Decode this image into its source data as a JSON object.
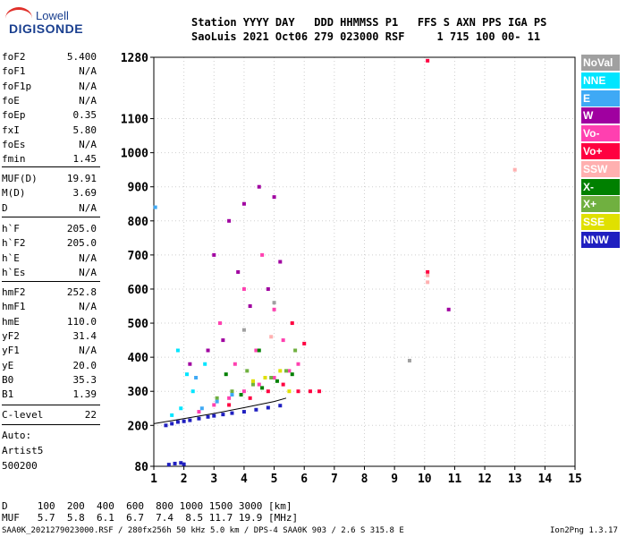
{
  "logo": {
    "line1": "Lowell",
    "line2": "DIGISONDE"
  },
  "header": {
    "row1": "Station YYYY DAY   DDD HHMMSS P1   FFS S AXN PPS IGA PS",
    "row2": "SaoLuis 2021 Oct06 279 023000 RSF     1 715 100 00- 11"
  },
  "scaled": {
    "group1": [
      {
        "label": "foF2",
        "value": "5.400"
      },
      {
        "label": "foF1",
        "value": "N/A"
      },
      {
        "label": "foF1p",
        "value": "N/A"
      },
      {
        "label": "foE",
        "value": "N/A"
      },
      {
        "label": "foEp",
        "value": "0.35"
      },
      {
        "label": "fxI",
        "value": "5.80"
      },
      {
        "label": "foEs",
        "value": "N/A"
      },
      {
        "label": "fmin",
        "value": "1.45"
      }
    ],
    "group2": [
      {
        "label": "MUF(D)",
        "value": "19.91"
      },
      {
        "label": "M(D)",
        "value": "3.69"
      },
      {
        "label": "D",
        "value": "N/A"
      }
    ],
    "group3": [
      {
        "label": "h`F",
        "value": "205.0"
      },
      {
        "label": "h`F2",
        "value": "205.0"
      },
      {
        "label": "h`E",
        "value": "N/A"
      },
      {
        "label": "h`Es",
        "value": "N/A"
      }
    ],
    "group4": [
      {
        "label": "hmF2",
        "value": "252.8"
      },
      {
        "label": "hmF1",
        "value": "N/A"
      },
      {
        "label": "hmE",
        "value": "110.0"
      },
      {
        "label": "yF2",
        "value": "31.4"
      },
      {
        "label": "yF1",
        "value": "N/A"
      },
      {
        "label": "yE",
        "value": "20.0"
      },
      {
        "label": "B0",
        "value": "35.3"
      },
      {
        "label": "B1",
        "value": "1.39"
      }
    ],
    "clevel": {
      "label": "C-level",
      "value": "22"
    },
    "auto": [
      "Auto:",
      "Artist5",
      "500200"
    ]
  },
  "legend": [
    {
      "label": "NoVal",
      "color": "#a0a0a0"
    },
    {
      "label": "NNE",
      "color": "#00e5ff"
    },
    {
      "label": "E",
      "color": "#3fa9f5"
    },
    {
      "label": "W",
      "color": "#a000a0"
    },
    {
      "label": "Vo-",
      "color": "#ff40b0"
    },
    {
      "label": "Vo+",
      "color": "#ff0040"
    },
    {
      "label": "SSW",
      "color": "#ffb0b0"
    },
    {
      "label": "X-",
      "color": "#008000"
    },
    {
      "label": "X+",
      "color": "#70b040"
    },
    {
      "label": "SSE",
      "color": "#e0e000"
    },
    {
      "label": "NNW",
      "color": "#2020c0"
    }
  ],
  "chart_data": {
    "type": "scatter",
    "title": "",
    "xlabel": "",
    "ylabel": "",
    "xlim": [
      1,
      15
    ],
    "ylim": [
      80,
      1280
    ],
    "x_ticks": [
      1,
      2,
      3,
      4,
      5,
      6,
      7,
      8,
      9,
      10,
      11,
      12,
      13,
      14,
      15
    ],
    "y_ticks": [
      80,
      200,
      300,
      400,
      500,
      600,
      700,
      800,
      900,
      1000,
      1100,
      1280
    ],
    "grid": true,
    "series": [
      {
        "name": "NNW",
        "color": "#2020c0",
        "points": [
          [
            1.4,
            200
          ],
          [
            1.6,
            205
          ],
          [
            1.8,
            210
          ],
          [
            2.0,
            212
          ],
          [
            2.2,
            215
          ],
          [
            2.5,
            220
          ],
          [
            2.8,
            225
          ],
          [
            3.0,
            228
          ],
          [
            3.3,
            232
          ],
          [
            3.6,
            236
          ],
          [
            4.0,
            240
          ],
          [
            4.4,
            246
          ],
          [
            4.8,
            252
          ],
          [
            5.2,
            258
          ],
          [
            1.5,
            85
          ],
          [
            1.7,
            88
          ],
          [
            1.9,
            90
          ],
          [
            2.0,
            86
          ]
        ]
      },
      {
        "name": "Vo-",
        "color": "#ff40b0",
        "points": [
          [
            2.5,
            240
          ],
          [
            3.0,
            260
          ],
          [
            3.5,
            280
          ],
          [
            4.0,
            300
          ],
          [
            4.5,
            320
          ],
          [
            5.0,
            340
          ],
          [
            5.5,
            360
          ],
          [
            5.8,
            380
          ],
          [
            3.2,
            500
          ],
          [
            4.0,
            600
          ],
          [
            4.6,
            700
          ],
          [
            5.0,
            540
          ],
          [
            5.3,
            450
          ],
          [
            4.4,
            420
          ],
          [
            3.7,
            380
          ]
        ]
      },
      {
        "name": "Vo+",
        "color": "#ff0040",
        "points": [
          [
            3.5,
            260
          ],
          [
            4.2,
            280
          ],
          [
            4.8,
            300
          ],
          [
            5.3,
            320
          ],
          [
            5.8,
            300
          ],
          [
            6.2,
            300
          ],
          [
            6.5,
            300
          ],
          [
            6.0,
            440
          ],
          [
            5.6,
            500
          ],
          [
            10.1,
            650
          ],
          [
            10.1,
            1270
          ]
        ]
      },
      {
        "name": "W",
        "color": "#a000a0",
        "points": [
          [
            3.0,
            700
          ],
          [
            3.5,
            800
          ],
          [
            4.0,
            850
          ],
          [
            4.5,
            900
          ],
          [
            5.0,
            870
          ],
          [
            3.8,
            650
          ],
          [
            4.2,
            550
          ],
          [
            4.8,
            600
          ],
          [
            5.2,
            680
          ],
          [
            3.3,
            450
          ],
          [
            2.8,
            420
          ],
          [
            2.2,
            380
          ],
          [
            10.8,
            540
          ]
        ]
      },
      {
        "name": "X+",
        "color": "#70b040",
        "points": [
          [
            3.6,
            300
          ],
          [
            4.3,
            320
          ],
          [
            4.9,
            340
          ],
          [
            5.4,
            360
          ],
          [
            5.7,
            420
          ],
          [
            4.1,
            360
          ],
          [
            3.1,
            280
          ]
        ]
      },
      {
        "name": "X-",
        "color": "#008000",
        "points": [
          [
            3.9,
            290
          ],
          [
            4.6,
            310
          ],
          [
            5.1,
            330
          ],
          [
            5.6,
            350
          ],
          [
            4.5,
            420
          ],
          [
            3.4,
            350
          ]
        ]
      },
      {
        "name": "SSE",
        "color": "#e0e000",
        "points": [
          [
            4.7,
            340
          ],
          [
            5.2,
            360
          ],
          [
            5.5,
            300
          ],
          [
            4.3,
            330
          ]
        ]
      },
      {
        "name": "NNE",
        "color": "#00e5ff",
        "points": [
          [
            1.6,
            230
          ],
          [
            1.9,
            250
          ],
          [
            2.3,
            300
          ],
          [
            2.7,
            380
          ],
          [
            1.8,
            420
          ],
          [
            2.1,
            350
          ]
        ]
      },
      {
        "name": "E",
        "color": "#3fa9f5",
        "points": [
          [
            2.6,
            250
          ],
          [
            3.1,
            270
          ],
          [
            3.6,
            290
          ],
          [
            2.4,
            340
          ],
          [
            1.05,
            840
          ]
        ]
      },
      {
        "name": "SSW",
        "color": "#ffb0b0",
        "points": [
          [
            10.1,
            620
          ],
          [
            10.1,
            640
          ],
          [
            13,
            950
          ],
          [
            4.9,
            460
          ]
        ]
      },
      {
        "name": "NoVal",
        "color": "#a0a0a0",
        "points": [
          [
            9.5,
            390
          ],
          [
            4.0,
            480
          ],
          [
            5.0,
            560
          ]
        ]
      }
    ],
    "profile_line": [
      [
        1.0,
        205
      ],
      [
        2.0,
        220
      ],
      [
        3.0,
        235
      ],
      [
        4.0,
        252
      ],
      [
        5.0,
        270
      ],
      [
        5.4,
        280
      ]
    ]
  },
  "bottom": {
    "row1": "D     100  200  400  600  800 1000 1500 3000 [km]",
    "row2": "MUF   5.7  5.8  6.1  6.7  7.4  8.5 11.7 19.9 [MHz]",
    "footer_left": "SAA0K_2021279023000.RSF / 280fx256h 50 kHz 5.0 km / DPS-4 SAA0K 903 / 2.6 S 315.8 E",
    "footer_right": "Ion2Png 1.3.17"
  }
}
